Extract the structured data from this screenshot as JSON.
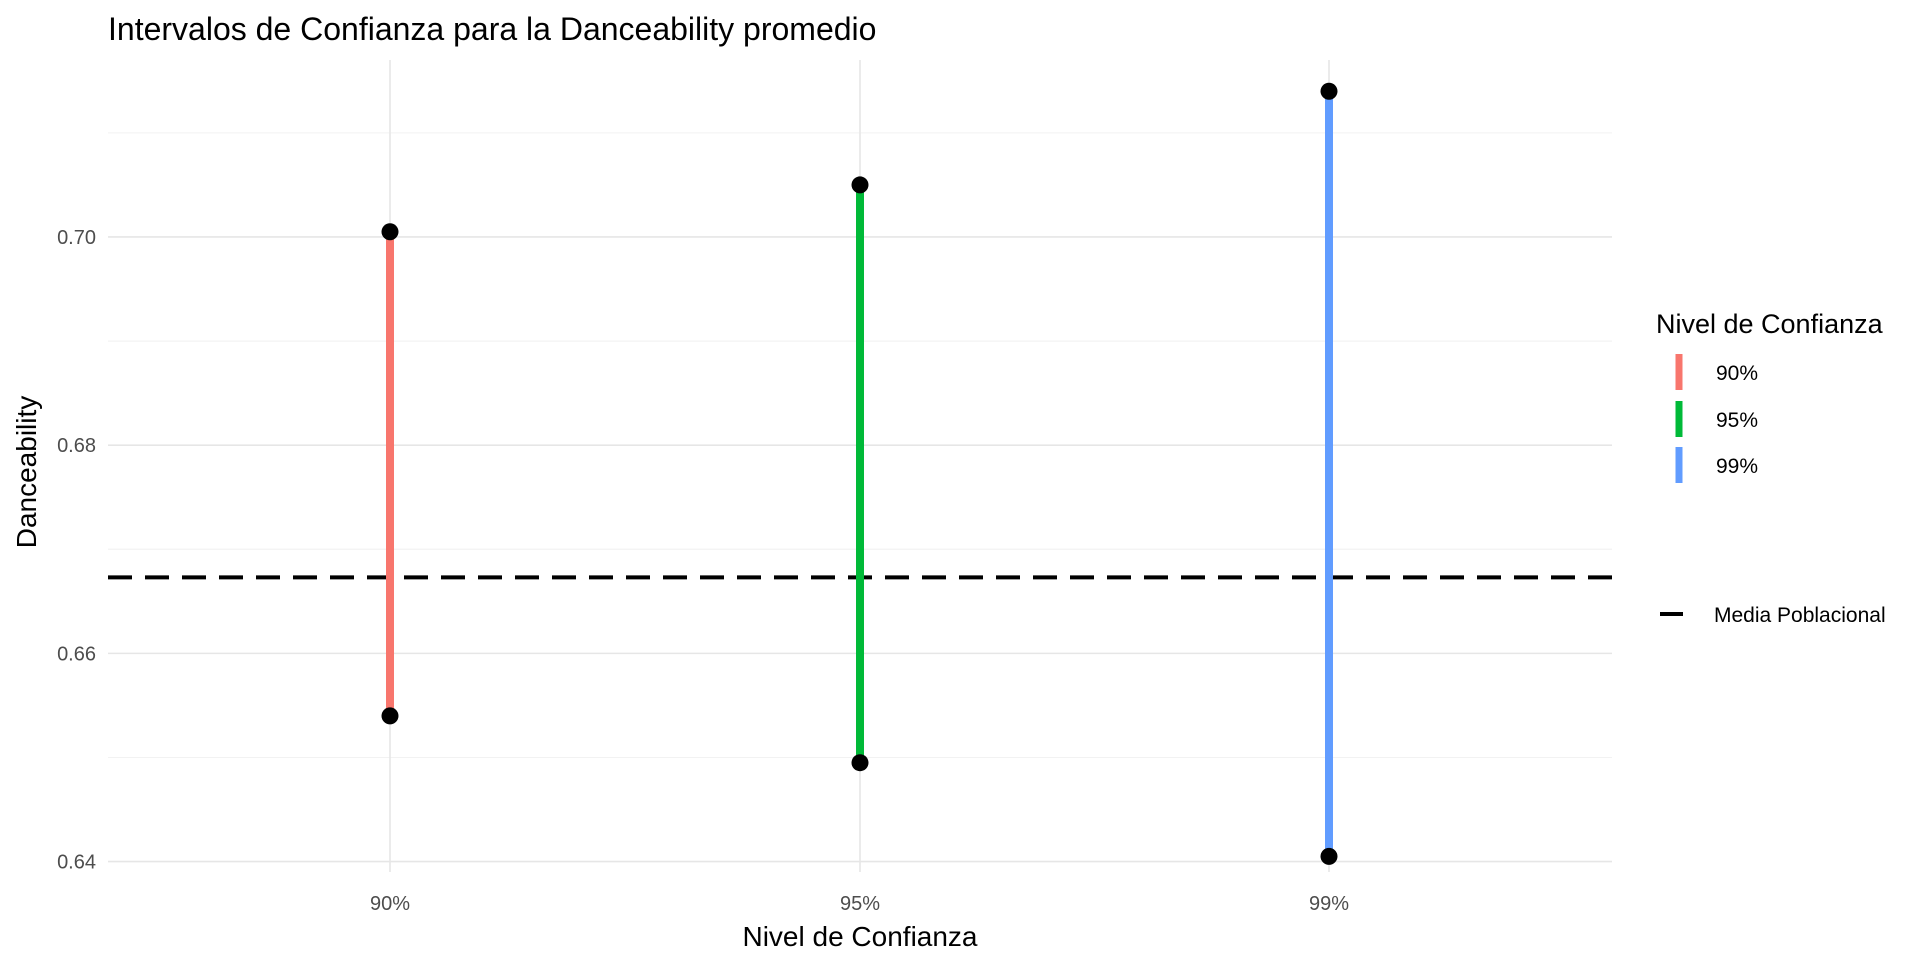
{
  "chart_data": {
    "type": "errorbar",
    "title": "Intervalos de Confianza para la Danceability promedio",
    "xlabel": "Nivel de Confianza",
    "ylabel": "Danceability",
    "categories": [
      "90%",
      "95%",
      "99%"
    ],
    "intervals": [
      {
        "category": "90%",
        "lower": 0.654,
        "upper": 0.7005,
        "color": "#F8766D"
      },
      {
        "category": "95%",
        "lower": 0.6495,
        "upper": 0.705,
        "color": "#00BA38"
      },
      {
        "category": "99%",
        "lower": 0.6405,
        "upper": 0.714,
        "color": "#619CFF"
      }
    ],
    "reference_line": {
      "label": "Media Poblacional",
      "value": 0.6673,
      "style": "dashed",
      "color": "#000000"
    },
    "ylim": [
      0.639,
      0.717
    ],
    "yticks": [
      0.64,
      0.66,
      0.68,
      0.7
    ],
    "ytick_labels": [
      "0.64",
      "0.66",
      "0.68",
      "0.70"
    ],
    "grid": true,
    "legend": {
      "title": "Nivel de Confianza",
      "placement": "right",
      "entries": [
        "90%",
        "95%",
        "99%"
      ],
      "line_entry": "Media Poblacional"
    }
  }
}
